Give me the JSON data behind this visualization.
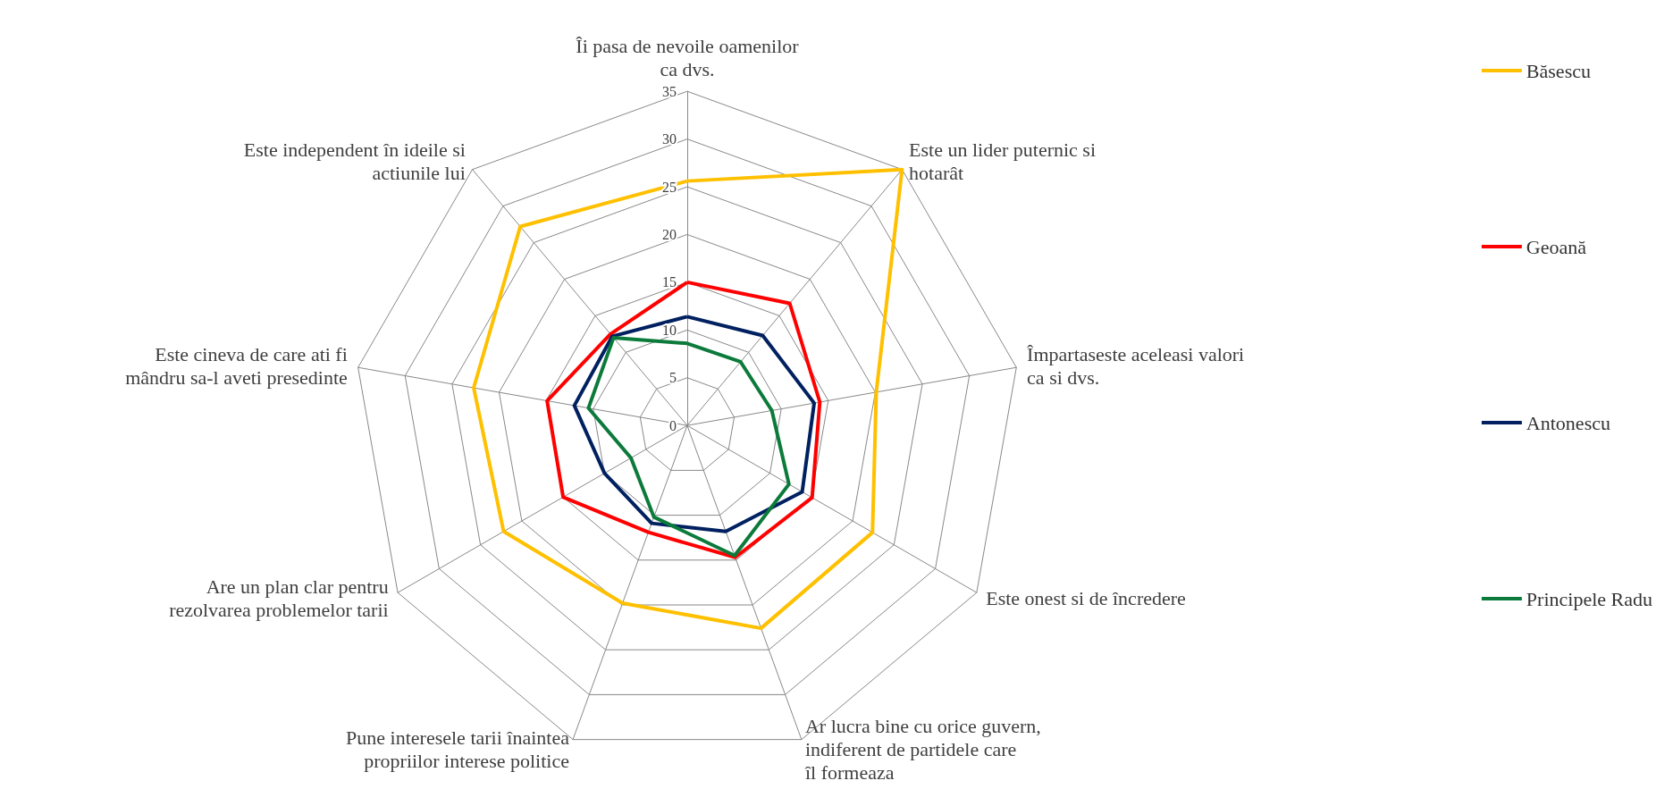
{
  "chart_data": {
    "type": "radar",
    "categories": [
      "Îi pasa de nevoile oamenilor ca dvs.",
      "Este un lider puternic si hotarât",
      "Împartaseste aceleasi valori ca si dvs.",
      "Este onest si de încredere",
      "Ar lucra bine cu orice guvern, indiferent de partidele care îl formeaza",
      "Pune interesele tarii înaintea propriilor interese politice",
      "Are un plan clar pentru rezolvarea problemelor tarii",
      "Este cineva de care ati fi mândru sa-l aveti presedinte",
      "Este independent în ideile si actiunile lui"
    ],
    "series": [
      {
        "name": "Băsescu",
        "color": "#ffc000",
        "values": [
          25.6,
          35,
          20.1,
          22.4,
          22.6,
          19.8,
          22.2,
          22.7,
          27.2
        ]
      },
      {
        "name": "Geoană",
        "color": "#ff0000",
        "values": [
          15,
          16.7,
          14.1,
          15.1,
          14.7,
          11.9,
          15,
          14.9,
          12.5
        ]
      },
      {
        "name": "Antonescu",
        "color": "#002060",
        "values": [
          11.4,
          12.3,
          13.5,
          13.9,
          11.8,
          10.9,
          10,
          12,
          12.2
        ]
      },
      {
        "name": "Principele Radu",
        "color": "#0b7a3a",
        "values": [
          8.6,
          8.7,
          9,
          12.3,
          14.5,
          10.2,
          6.8,
          10.5,
          12
        ]
      }
    ],
    "ylim": [
      0,
      35
    ],
    "yticks": [
      0,
      5,
      10,
      15,
      20,
      25,
      30,
      35
    ],
    "grid": true,
    "legend": "right",
    "marker": "none",
    "line_style": "solid"
  }
}
